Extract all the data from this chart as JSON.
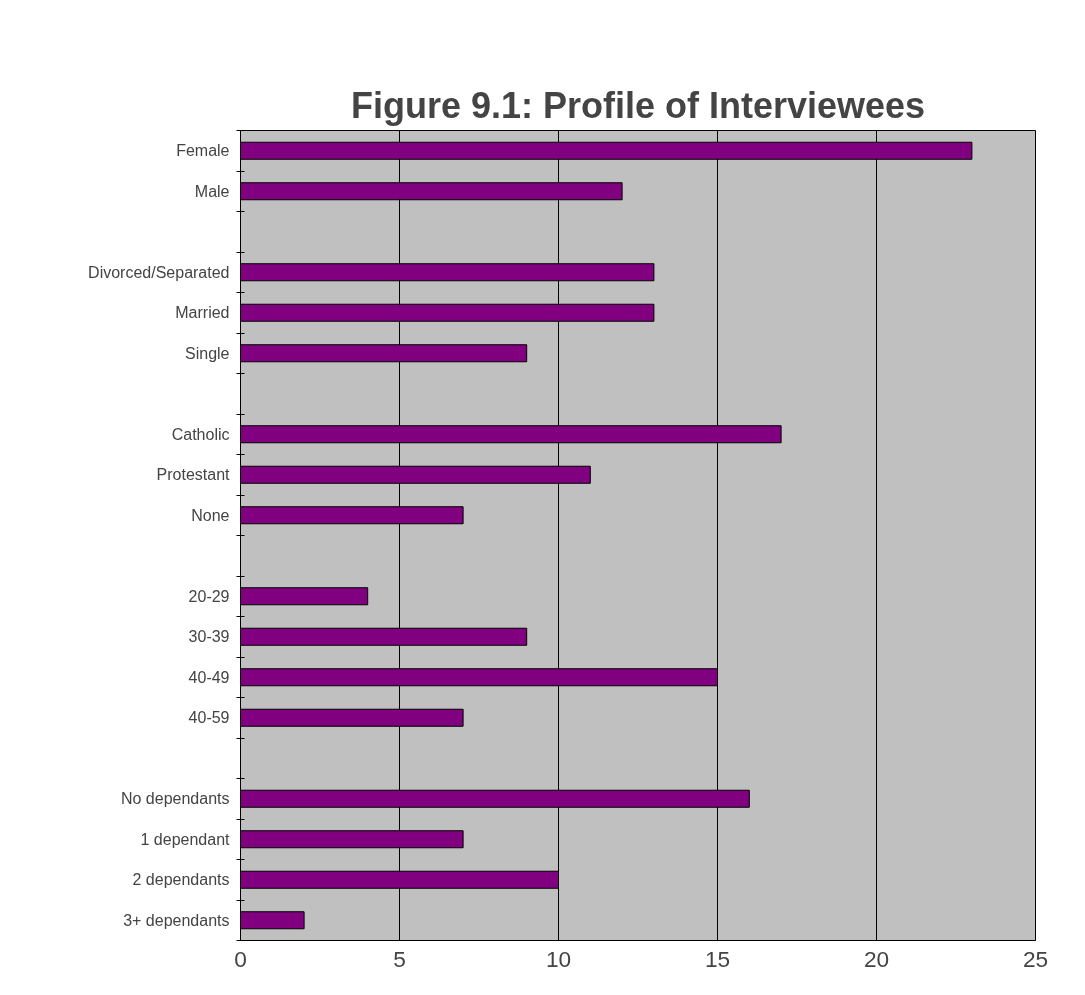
{
  "chart_data": {
    "type": "bar",
    "orientation": "horizontal",
    "title": "Figure 9.1: Profile of Interviewees",
    "categories": [
      "Female",
      "Male",
      null,
      "Divorced/Separated",
      "Married",
      "Single",
      null,
      "Catholic",
      "Protestant",
      "None",
      null,
      "20-29",
      "30-39",
      "40-49",
      "40-59",
      null,
      "No dependants",
      "1 dependant",
      "2 dependants",
      "3+ dependants"
    ],
    "values": [
      23,
      12,
      null,
      13,
      13,
      9,
      null,
      17,
      11,
      7,
      null,
      4,
      9,
      15,
      7,
      null,
      16,
      7,
      10,
      2
    ],
    "color": "#800080",
    "xlim": [
      0,
      25
    ],
    "xticks": [
      0,
      5,
      10,
      15,
      20,
      25
    ],
    "grid": "x"
  }
}
